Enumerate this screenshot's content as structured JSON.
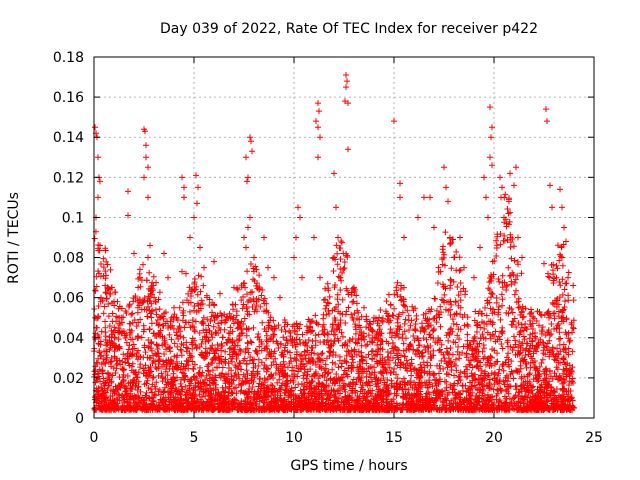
{
  "chart_data": {
    "type": "scatter",
    "title": "Day 039 of 2022, Rate Of TEC Index for receiver p422",
    "xlabel": "GPS time / hours",
    "ylabel": "ROTI / TECUs",
    "xlim": [
      0,
      25
    ],
    "ylim": [
      0,
      0.18
    ],
    "x_ticks": [
      0,
      5,
      10,
      15,
      20,
      25
    ],
    "x_tick_labels": [
      "0",
      "5",
      "10",
      "15",
      "20",
      "25"
    ],
    "y_ticks": [
      0,
      0.02,
      0.04,
      0.06,
      0.08,
      0.1,
      0.12,
      0.14,
      0.16,
      0.18
    ],
    "y_tick_labels": [
      "0",
      "0.02",
      "0.04",
      "0.06",
      "0.08",
      "0.1",
      "0.12",
      "0.14",
      "0.16",
      "0.18"
    ],
    "grid": true,
    "marker": "plus",
    "point_color": "#ff0000",
    "time_span_hours": [
      0,
      24
    ],
    "note": "Dense scatter (thousands of points). Baseline ~0.005-0.03 throughout the day; elevated bursts listed below as representative data points read from the figure.",
    "points": [
      [
        0.05,
        0.145
      ],
      [
        0.1,
        0.142
      ],
      [
        0.15,
        0.14
      ],
      [
        0.2,
        0.13
      ],
      [
        0.25,
        0.12
      ],
      [
        0.3,
        0.118
      ],
      [
        0.2,
        0.11
      ],
      [
        0.1,
        0.1
      ],
      [
        0.3,
        0.086
      ],
      [
        0.25,
        0.072
      ],
      [
        0.35,
        0.06
      ],
      [
        0.2,
        0.05
      ],
      [
        0.15,
        0.045
      ],
      [
        1.0,
        0.058
      ],
      [
        1.2,
        0.05
      ],
      [
        1.7,
        0.113
      ],
      [
        1.7,
        0.101
      ],
      [
        2.0,
        0.082
      ],
      [
        2.3,
        0.07
      ],
      [
        2.5,
        0.144
      ],
      [
        2.55,
        0.143
      ],
      [
        2.6,
        0.136
      ],
      [
        2.6,
        0.13
      ],
      [
        2.7,
        0.125
      ],
      [
        2.5,
        0.12
      ],
      [
        2.7,
        0.11
      ],
      [
        2.8,
        0.086
      ],
      [
        2.7,
        0.08
      ],
      [
        3.5,
        0.082
      ],
      [
        3.7,
        0.07
      ],
      [
        3.0,
        0.06
      ],
      [
        4.0,
        0.055
      ],
      [
        4.4,
        0.12
      ],
      [
        4.5,
        0.115
      ],
      [
        4.5,
        0.11
      ],
      [
        4.4,
        0.073
      ],
      [
        4.6,
        0.072
      ],
      [
        4.8,
        0.09
      ],
      [
        5.1,
        0.121
      ],
      [
        5.2,
        0.115
      ],
      [
        5.15,
        0.107
      ],
      [
        5.0,
        0.1
      ],
      [
        5.3,
        0.085
      ],
      [
        5.5,
        0.075
      ],
      [
        6.0,
        0.078
      ],
      [
        6.3,
        0.062
      ],
      [
        7.0,
        0.065
      ],
      [
        7.5,
        0.09
      ],
      [
        7.6,
        0.085
      ],
      [
        7.6,
        0.13
      ],
      [
        7.7,
        0.12
      ],
      [
        7.65,
        0.118
      ],
      [
        7.8,
        0.14
      ],
      [
        7.85,
        0.138
      ],
      [
        7.9,
        0.133
      ],
      [
        7.8,
        0.1
      ],
      [
        7.7,
        0.095
      ],
      [
        8.0,
        0.08
      ],
      [
        8.5,
        0.09
      ],
      [
        8.7,
        0.075
      ],
      [
        9.0,
        0.07
      ],
      [
        9.3,
        0.06
      ],
      [
        10.2,
        0.105
      ],
      [
        10.3,
        0.1
      ],
      [
        10.1,
        0.09
      ],
      [
        10.0,
        0.08
      ],
      [
        10.4,
        0.07
      ],
      [
        11.0,
        0.09
      ],
      [
        11.3,
        0.07
      ],
      [
        11.2,
        0.157
      ],
      [
        11.25,
        0.153
      ],
      [
        11.1,
        0.148
      ],
      [
        11.2,
        0.145
      ],
      [
        11.3,
        0.14
      ],
      [
        11.2,
        0.13
      ],
      [
        12.0,
        0.122
      ],
      [
        12.1,
        0.105
      ],
      [
        12.2,
        0.09
      ],
      [
        12.0,
        0.08
      ],
      [
        12.3,
        0.07
      ],
      [
        12.6,
        0.171
      ],
      [
        12.65,
        0.168
      ],
      [
        12.6,
        0.165
      ],
      [
        12.55,
        0.158
      ],
      [
        12.7,
        0.157
      ],
      [
        12.7,
        0.134
      ],
      [
        13.0,
        0.065
      ],
      [
        13.5,
        0.055
      ],
      [
        14.0,
        0.05
      ],
      [
        15.0,
        0.148
      ],
      [
        15.3,
        0.117
      ],
      [
        15.3,
        0.11
      ],
      [
        15.5,
        0.09
      ],
      [
        15.5,
        0.065
      ],
      [
        16.2,
        0.1
      ],
      [
        16.5,
        0.11
      ],
      [
        16.8,
        0.11
      ],
      [
        17.0,
        0.095
      ],
      [
        17.5,
        0.125
      ],
      [
        17.6,
        0.115
      ],
      [
        17.7,
        0.108
      ],
      [
        17.8,
        0.09
      ],
      [
        18.0,
        0.08
      ],
      [
        18.3,
        0.09
      ],
      [
        18.5,
        0.075
      ],
      [
        19.0,
        0.07
      ],
      [
        19.3,
        0.085
      ],
      [
        19.5,
        0.12
      ],
      [
        19.6,
        0.11
      ],
      [
        19.7,
        0.1
      ],
      [
        19.8,
        0.155
      ],
      [
        19.9,
        0.145
      ],
      [
        19.85,
        0.14
      ],
      [
        19.8,
        0.13
      ],
      [
        19.9,
        0.126
      ],
      [
        20.3,
        0.12
      ],
      [
        20.4,
        0.115
      ],
      [
        20.35,
        0.11
      ],
      [
        20.5,
        0.1
      ],
      [
        20.8,
        0.122
      ],
      [
        21.0,
        0.116
      ],
      [
        21.1,
        0.125
      ],
      [
        21.2,
        0.09
      ],
      [
        21.4,
        0.08
      ],
      [
        22.6,
        0.154
      ],
      [
        22.65,
        0.148
      ],
      [
        22.8,
        0.116
      ],
      [
        22.9,
        0.105
      ],
      [
        22.5,
        0.077
      ],
      [
        22.7,
        0.072
      ],
      [
        23.3,
        0.114
      ],
      [
        23.4,
        0.105
      ],
      [
        23.5,
        0.095
      ],
      [
        23.6,
        0.088
      ],
      [
        23.4,
        0.08
      ],
      [
        23.7,
        0.07
      ]
    ]
  }
}
